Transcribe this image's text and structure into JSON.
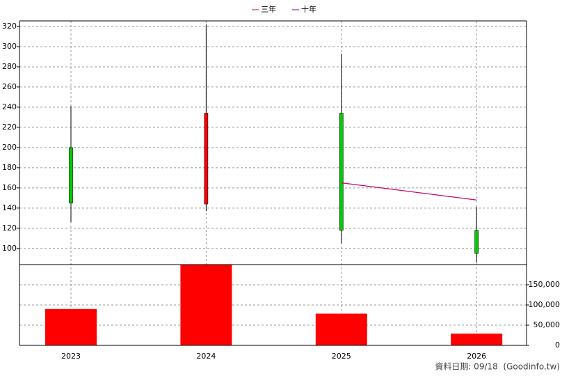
{
  "chart_data": {
    "type": "candlestick",
    "categories": [
      "2023",
      "2024",
      "2025",
      "2026"
    ],
    "open": [
      200,
      144,
      234,
      118
    ],
    "high": [
      241,
      322,
      293,
      141
    ],
    "low": [
      126,
      137,
      105,
      86
    ],
    "close": [
      145,
      234,
      118,
      95
    ],
    "up_color": "#ff0000",
    "down_color": "#00cc00",
    "series": [
      {
        "name": "三年",
        "color": "#cc0066",
        "values": [
          null,
          null,
          165,
          148
        ]
      },
      {
        "name": "十年",
        "color": "#800080",
        "values": [
          null,
          null,
          null,
          null
        ]
      }
    ],
    "ylim": [
      84,
      325.5
    ],
    "yticks": [
      100,
      120,
      140,
      160,
      180,
      200,
      220,
      240,
      260,
      280,
      300,
      320
    ],
    "volume": {
      "color": "#ff0000",
      "values": [
        90000,
        200000,
        78500,
        29000
      ]
    },
    "y2lim": [
      0,
      200000
    ],
    "y2ticks": [
      0,
      {
        "value": 50000,
        "label": "50,000"
      },
      {
        "value": 100000,
        "label": "100,000"
      },
      {
        "value": 150000,
        "label": "150,000"
      }
    ],
    "grid": true,
    "footnote": "資料日期: 09/18  (Goodinfo.tw)"
  }
}
